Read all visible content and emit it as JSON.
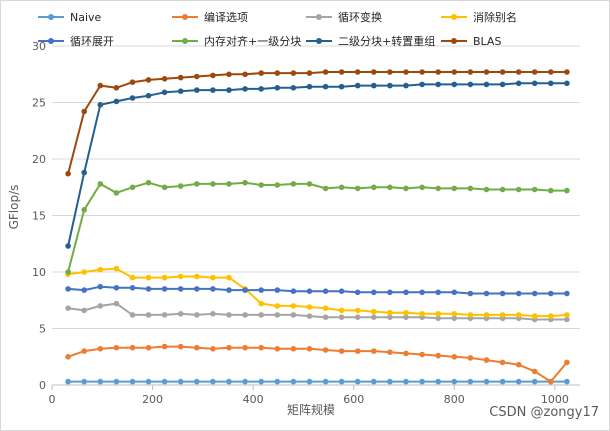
{
  "chart_data": {
    "type": "line",
    "xlabel": "矩阵规模",
    "ylabel": "GFlop/s",
    "xlim": [
      0,
      1050
    ],
    "ylim": [
      0,
      30
    ],
    "xticks": [
      0,
      200,
      400,
      600,
      800,
      1000
    ],
    "yticks": [
      0,
      5,
      10,
      15,
      20,
      25,
      30
    ],
    "grid": "horizontal",
    "legend_position": "top",
    "x": [
      32,
      64,
      96,
      128,
      160,
      192,
      224,
      256,
      288,
      320,
      352,
      384,
      416,
      448,
      480,
      512,
      544,
      576,
      608,
      640,
      672,
      704,
      736,
      768,
      800,
      832,
      864,
      896,
      928,
      960,
      992,
      1024
    ],
    "series": [
      {
        "name": "Naive",
        "color": "#5B9BD5",
        "values": [
          0.3,
          0.3,
          0.3,
          0.3,
          0.3,
          0.3,
          0.3,
          0.3,
          0.3,
          0.3,
          0.3,
          0.3,
          0.3,
          0.3,
          0.3,
          0.3,
          0.3,
          0.3,
          0.3,
          0.3,
          0.3,
          0.3,
          0.3,
          0.3,
          0.3,
          0.3,
          0.3,
          0.3,
          0.3,
          0.3,
          0.3,
          0.3
        ]
      },
      {
        "name": "编译选项",
        "color": "#ED7D31",
        "values": [
          2.5,
          3.0,
          3.2,
          3.3,
          3.3,
          3.3,
          3.4,
          3.4,
          3.3,
          3.2,
          3.3,
          3.3,
          3.3,
          3.2,
          3.2,
          3.2,
          3.1,
          3.0,
          3.0,
          3.0,
          2.9,
          2.8,
          2.7,
          2.6,
          2.5,
          2.4,
          2.2,
          2.0,
          1.8,
          1.2,
          0.3,
          2.0
        ]
      },
      {
        "name": "循环变换",
        "color": "#A5A5A5",
        "values": [
          6.8,
          6.6,
          7.0,
          7.2,
          6.2,
          6.2,
          6.2,
          6.3,
          6.2,
          6.3,
          6.2,
          6.2,
          6.2,
          6.2,
          6.2,
          6.1,
          6.0,
          6.0,
          6.0,
          6.0,
          6.0,
          6.0,
          6.0,
          5.9,
          5.9,
          5.9,
          5.9,
          5.9,
          5.9,
          5.8,
          5.8,
          5.8
        ]
      },
      {
        "name": "消除别名",
        "color": "#FFC000",
        "values": [
          9.8,
          10.0,
          10.2,
          10.3,
          9.5,
          9.5,
          9.5,
          9.6,
          9.6,
          9.5,
          9.5,
          8.5,
          7.2,
          7.0,
          7.0,
          6.9,
          6.8,
          6.6,
          6.6,
          6.5,
          6.4,
          6.4,
          6.3,
          6.3,
          6.3,
          6.2,
          6.2,
          6.2,
          6.2,
          6.1,
          6.1,
          6.2
        ]
      },
      {
        "name": "循环展开",
        "color": "#4472C4",
        "values": [
          8.5,
          8.4,
          8.7,
          8.6,
          8.6,
          8.5,
          8.5,
          8.5,
          8.5,
          8.5,
          8.4,
          8.4,
          8.4,
          8.4,
          8.3,
          8.3,
          8.3,
          8.3,
          8.2,
          8.2,
          8.2,
          8.2,
          8.2,
          8.2,
          8.2,
          8.1,
          8.1,
          8.1,
          8.1,
          8.1,
          8.1,
          8.1
        ]
      },
      {
        "name": "内存对齐+一级分块",
        "color": "#70AD47",
        "values": [
          10.0,
          15.5,
          17.8,
          17.0,
          17.5,
          17.9,
          17.5,
          17.6,
          17.8,
          17.8,
          17.8,
          17.9,
          17.7,
          17.7,
          17.8,
          17.8,
          17.4,
          17.5,
          17.4,
          17.5,
          17.5,
          17.4,
          17.5,
          17.4,
          17.4,
          17.4,
          17.3,
          17.3,
          17.3,
          17.3,
          17.2,
          17.2
        ]
      },
      {
        "name": "二级分块+转置重组",
        "color": "#255E91",
        "values": [
          12.3,
          18.8,
          24.8,
          25.1,
          25.4,
          25.6,
          25.9,
          26.0,
          26.1,
          26.1,
          26.1,
          26.2,
          26.2,
          26.3,
          26.3,
          26.4,
          26.4,
          26.4,
          26.5,
          26.5,
          26.5,
          26.5,
          26.6,
          26.6,
          26.6,
          26.6,
          26.6,
          26.6,
          26.7,
          26.7,
          26.7,
          26.7
        ]
      },
      {
        "name": "BLAS",
        "color": "#9E480E",
        "values": [
          18.7,
          24.2,
          26.5,
          26.3,
          26.8,
          27.0,
          27.1,
          27.2,
          27.3,
          27.4,
          27.5,
          27.5,
          27.6,
          27.6,
          27.6,
          27.6,
          27.7,
          27.7,
          27.7,
          27.7,
          27.7,
          27.7,
          27.7,
          27.7,
          27.7,
          27.7,
          27.7,
          27.7,
          27.7,
          27.7,
          27.7,
          27.7
        ]
      }
    ]
  },
  "watermark": "CSDN @zongy17"
}
